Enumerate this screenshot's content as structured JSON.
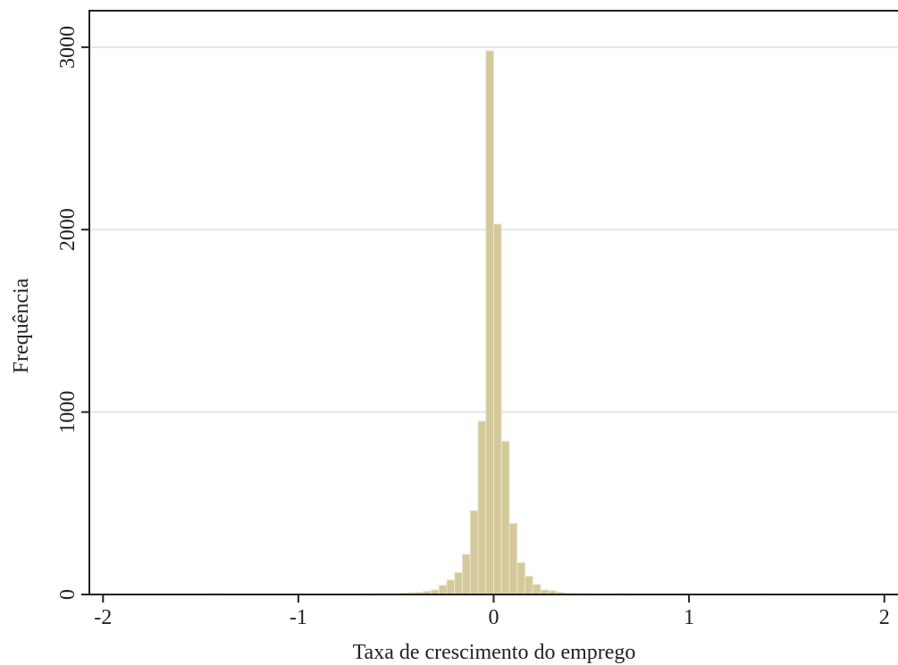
{
  "chart_data": {
    "type": "bar",
    "title": "",
    "xlabel": "Taxa de crescimento do emprego",
    "ylabel": "Frequência",
    "xlim": [
      -2.07,
      2.07
    ],
    "ylim": [
      0,
      3200
    ],
    "x_ticks": [
      -2,
      -1,
      0,
      1,
      2
    ],
    "x_tick_labels": [
      "-2",
      "-1",
      "0",
      "1",
      "2"
    ],
    "y_ticks": [
      0,
      1000,
      2000,
      3000
    ],
    "y_tick_labels": [
      "0",
      "1000",
      "2000",
      "3000"
    ],
    "grid": true,
    "legend": "none",
    "bar_color": "#d4c99a",
    "bin_width": 0.04,
    "bins": [
      {
        "x": -1.44,
        "y": 3
      },
      {
        "x": -1.32,
        "y": 2
      },
      {
        "x": -1.2,
        "y": 2
      },
      {
        "x": -0.8,
        "y": 2
      },
      {
        "x": -0.68,
        "y": 3
      },
      {
        "x": -0.6,
        "y": 4
      },
      {
        "x": -0.52,
        "y": 5
      },
      {
        "x": -0.48,
        "y": 8
      },
      {
        "x": -0.44,
        "y": 10
      },
      {
        "x": -0.4,
        "y": 12
      },
      {
        "x": -0.36,
        "y": 18
      },
      {
        "x": -0.32,
        "y": 25
      },
      {
        "x": -0.28,
        "y": 50
      },
      {
        "x": -0.24,
        "y": 80
      },
      {
        "x": -0.2,
        "y": 120
      },
      {
        "x": -0.16,
        "y": 220
      },
      {
        "x": -0.12,
        "y": 460
      },
      {
        "x": -0.08,
        "y": 950
      },
      {
        "x": -0.04,
        "y": 2980
      },
      {
        "x": 0.0,
        "y": 2030
      },
      {
        "x": 0.04,
        "y": 840
      },
      {
        "x": 0.08,
        "y": 390
      },
      {
        "x": 0.12,
        "y": 175
      },
      {
        "x": 0.16,
        "y": 100
      },
      {
        "x": 0.2,
        "y": 55
      },
      {
        "x": 0.24,
        "y": 25
      },
      {
        "x": 0.28,
        "y": 20
      },
      {
        "x": 0.32,
        "y": 12
      },
      {
        "x": 0.36,
        "y": 8
      },
      {
        "x": 0.4,
        "y": 5
      },
      {
        "x": 0.44,
        "y": 4
      },
      {
        "x": 0.64,
        "y": 3
      },
      {
        "x": 0.8,
        "y": 2
      },
      {
        "x": 1.0,
        "y": 2
      },
      {
        "x": 1.2,
        "y": 2
      },
      {
        "x": 1.36,
        "y": 3
      },
      {
        "x": 1.44,
        "y": 2
      }
    ]
  }
}
